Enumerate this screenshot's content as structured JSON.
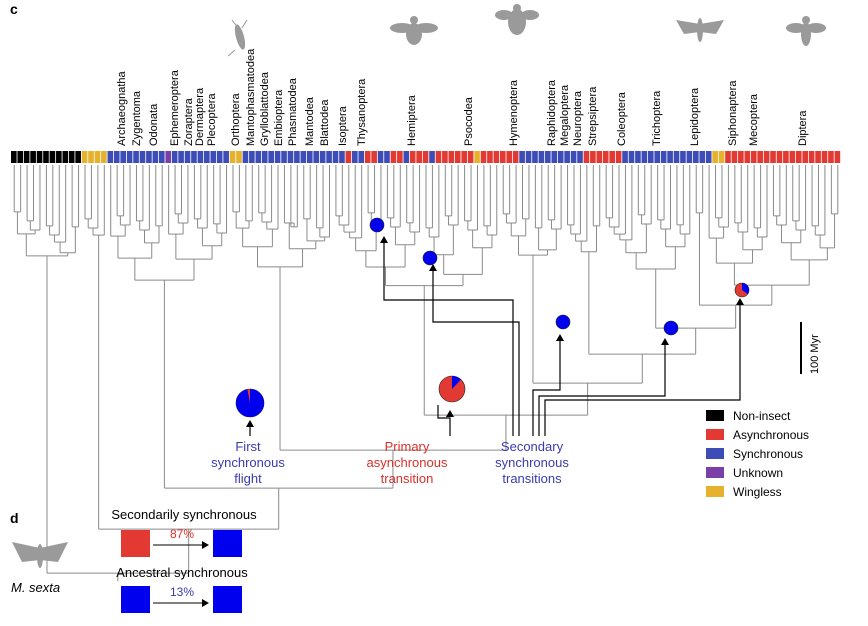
{
  "panel_c": {
    "letter": "c",
    "orders": [
      {
        "name": "Archaeognatha"
      },
      {
        "name": "Zygentoma"
      },
      {
        "name": "Odonata"
      },
      {
        "name": "Ephemeroptera"
      },
      {
        "name": "Zoraptera"
      },
      {
        "name": "Dermaptera"
      },
      {
        "name": "Plecoptera"
      },
      {
        "name": "Orthoptera"
      },
      {
        "name": "Mantophasmatodea"
      },
      {
        "name": "Grylloblattodea"
      },
      {
        "name": "Embioptera"
      },
      {
        "name": "Phasmatodea"
      },
      {
        "name": "Mantodea"
      },
      {
        "name": "Blattodea"
      },
      {
        "name": "Isoptera"
      },
      {
        "name": "Thysanoptera"
      },
      {
        "name": "Hemiptera"
      },
      {
        "name": "Psocodea"
      },
      {
        "name": "Hymenoptera"
      },
      {
        "name": "Raphidoptera"
      },
      {
        "name": "Megaloptera"
      },
      {
        "name": "Neuroptera"
      },
      {
        "name": "Strepsiptera"
      },
      {
        "name": "Coleoptera"
      },
      {
        "name": "Trichoptera"
      },
      {
        "name": "Lepidoptera"
      },
      {
        "name": "Siphonaptera"
      },
      {
        "name": "Mecoptera"
      },
      {
        "name": "Diptera"
      }
    ],
    "tip_states": "NNNNNNNNNNNWWWWSSSSSSSSSUSSSSSSSSSWWSSSSSSSSSSSSSSSSASSAASSAASAAASAAAAAAWAAAAAASSSSSSSSSSAAAAAASSSSSSSSSSSSSSWWAAAAAAAAAAAAAAAAAA",
    "scale_bar_label": "100 Myr",
    "annotations": [
      {
        "id": "first-sync",
        "lines": [
          "First",
          "synchronous",
          "flight"
        ],
        "color": "#3b3bb0"
      },
      {
        "id": "primary-async",
        "lines": [
          "Primary",
          "asynchronous",
          "transition"
        ],
        "color": "#d9312b"
      },
      {
        "id": "secondary-sync",
        "lines": [
          "Secondary",
          "synchronous",
          "transitions"
        ],
        "color": "#3b3bb0"
      }
    ],
    "legend": [
      {
        "label": "Non-insect",
        "color": "#000000"
      },
      {
        "label": "Asynchronous",
        "color": "#e23a32"
      },
      {
        "label": "Synchronous",
        "color": "#3d4db7"
      },
      {
        "label": "Unknown",
        "color": "#7b3fa8"
      },
      {
        "label": "Wingless",
        "color": "#e6b22d"
      }
    ],
    "nodes": [
      {
        "id": "root-sync",
        "sync_fraction": 0.97
      },
      {
        "id": "primary-async",
        "sync_fraction": 0.12
      },
      {
        "id": "thysanoptera-node",
        "sync_fraction": 1.0
      },
      {
        "id": "hemiptera-node",
        "sync_fraction": 1.0
      },
      {
        "id": "neuropterida-node",
        "sync_fraction": 1.0
      },
      {
        "id": "lepidoptera-node",
        "sync_fraction": 1.0
      },
      {
        "id": "siphonaptera-node",
        "sync_fraction": 0.35
      }
    ]
  },
  "panel_d": {
    "letter": "d",
    "species": "M. sexta",
    "rows": [
      {
        "title": "Secondarily synchronous",
        "percent": "87%",
        "from_color": "#e23a32",
        "to_color": "#0000ee",
        "percent_color": "#d9312b"
      },
      {
        "title": "Ancestral synchronous",
        "percent": "13%",
        "from_color": "#0000ee",
        "to_color": "#0000ee",
        "percent_color": "#3b3bb0"
      }
    ]
  },
  "colors": {
    "async": "#e23a32",
    "sync": "#3d4db7",
    "node_blue": "#0000ee",
    "nonins": "#000000",
    "unknown": "#7b3fa8",
    "wingless": "#e6b22d",
    "tree": "#8a8a8a",
    "silhouette": "#9a9a9a"
  }
}
